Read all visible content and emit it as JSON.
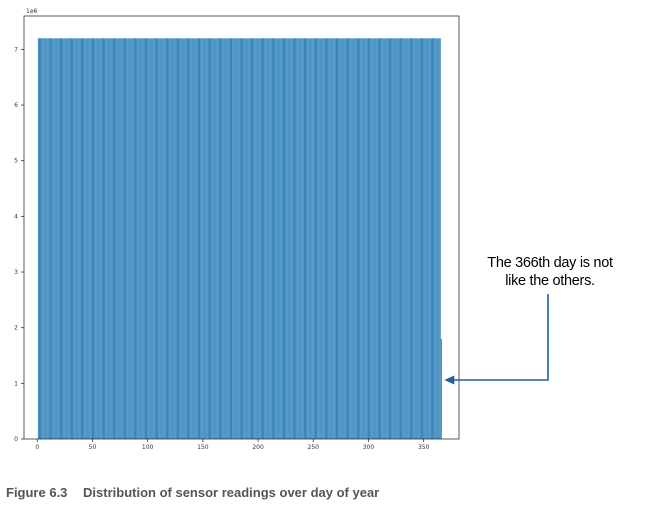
{
  "chart_data": {
    "type": "bar",
    "x_start": 1,
    "x_end": 366,
    "value_regular": 7.2,
    "value_last_day": 1.8,
    "value_unit_multiplier": "1e6",
    "xlim": [
      -12,
      382
    ],
    "ylim": [
      0,
      7.6
    ],
    "xticks": [
      0,
      50,
      100,
      150,
      200,
      250,
      300,
      350
    ],
    "yticks": [
      0,
      1,
      2,
      3,
      4,
      5,
      6,
      7
    ],
    "offset_label": "1e6",
    "bar_color": "#1f77b4",
    "grid": false
  },
  "annotation": {
    "line1": "The 366th day is not",
    "line2": "like the others.",
    "arrow_color": "#1f5fa0"
  },
  "caption": {
    "figure_number": "Figure 6.3",
    "title": "Distribution of sensor readings over day of year"
  }
}
